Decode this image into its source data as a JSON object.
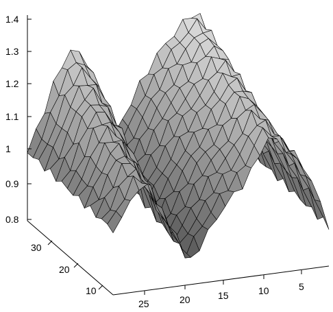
{
  "chart_data": {
    "type": "surface",
    "title": "",
    "xlabel": "",
    "ylabel": "",
    "zlabel": "",
    "colormap": "gray",
    "edge_color": "#000000",
    "grid": false,
    "x_ticks": [
      "25",
      "20",
      "15",
      "10",
      "5"
    ],
    "y_ticks": [
      "30",
      "20",
      "10"
    ],
    "z_ticks": [
      "1.4",
      "1.3",
      "1.2",
      "1.1",
      "1",
      "0.9",
      "0.8"
    ],
    "z_range": [
      0.8,
      1.4
    ],
    "x_range": [
      1,
      29
    ],
    "y_range": [
      1,
      33
    ],
    "profile_at_front_edge": {
      "x": [
        29,
        26,
        23,
        21,
        20,
        19,
        17,
        15,
        13,
        11,
        9,
        7,
        6,
        5,
        3,
        1
      ],
      "z": [
        1.0,
        1.18,
        1.3,
        1.25,
        1.1,
        0.95,
        1.05,
        1.15,
        1.2,
        1.28,
        1.33,
        1.35,
        1.3,
        1.18,
        1.05,
        0.93
      ]
    },
    "profile_at_valley": {
      "x": [
        29,
        25,
        21,
        19,
        17,
        13,
        9,
        5,
        1
      ],
      "z": [
        1.0,
        1.12,
        0.95,
        0.86,
        0.95,
        1.05,
        1.2,
        1.15,
        0.92
      ]
    }
  }
}
